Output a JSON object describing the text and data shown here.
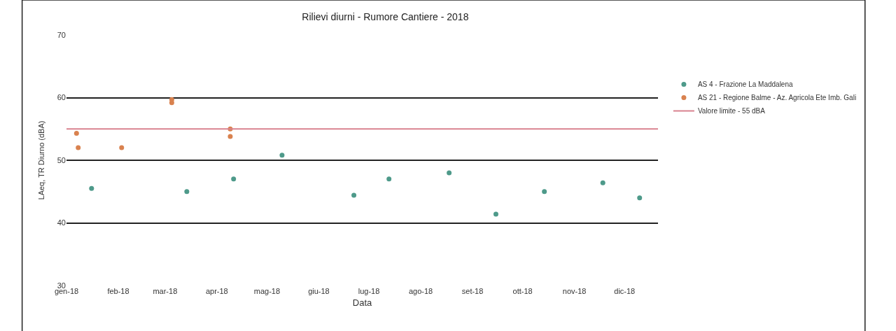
{
  "chart_data": {
    "type": "scatter",
    "title": "Rilievi diurni - Rumore Cantiere - 2018",
    "xlabel": "Data",
    "ylabel": "LAeq, TR Diurno (dBA)",
    "series": [
      {
        "name": "AS 4 - Frazione La Maddalena",
        "color": "#4e9a8a",
        "x": [
          "2018-01-16",
          "2018-03-14",
          "2018-04-11",
          "2018-05-10",
          "2018-06-22",
          "2018-07-13",
          "2018-08-18",
          "2018-09-15",
          "2018-10-14",
          "2018-11-18",
          "2018-12-10"
        ],
        "values": [
          45.5,
          45,
          47,
          50.8,
          44.4,
          47,
          48,
          41.4,
          45,
          46.4,
          44
        ]
      },
      {
        "name": "AS 21 - Regione Balme - Az. Agricola Ete Imb. Gali",
        "color": "#d9824f",
        "x": [
          "2018-01-07",
          "2018-01-08",
          "2018-02-03",
          "2018-03-05",
          "2018-03-05",
          "2018-04-09",
          "2018-04-09"
        ],
        "values": [
          54.3,
          52,
          52,
          59.2,
          59.7,
          55,
          53.8
        ]
      }
    ],
    "ref_lines": [
      {
        "axis": "y",
        "value": 55,
        "label": "Valore limite - 55 dBA",
        "color": "#d9828f"
      }
    ],
    "xlim": [
      "2018-01-01",
      "2018-12-21"
    ],
    "xticks": [
      {
        "value": "2018-01-01",
        "label": "gen-18"
      },
      {
        "value": "2018-02-01",
        "label": "feb-18"
      },
      {
        "value": "2018-03-01",
        "label": "mar-18"
      },
      {
        "value": "2018-04-01",
        "label": "apr-18"
      },
      {
        "value": "2018-05-01",
        "label": "mag-18"
      },
      {
        "value": "2018-06-01",
        "label": "giu-18"
      },
      {
        "value": "2018-07-01",
        "label": "lug-18"
      },
      {
        "value": "2018-08-01",
        "label": "ago-18"
      },
      {
        "value": "2018-09-01",
        "label": "set-18"
      },
      {
        "value": "2018-10-01",
        "label": "ott-18"
      },
      {
        "value": "2018-11-01",
        "label": "nov-18"
      },
      {
        "value": "2018-12-01",
        "label": "dic-18"
      }
    ],
    "ylim": [
      30,
      70
    ],
    "yticks": [
      30,
      40,
      50,
      60,
      70
    ],
    "grid": "y",
    "legend": "right",
    "marker": "circle"
  }
}
